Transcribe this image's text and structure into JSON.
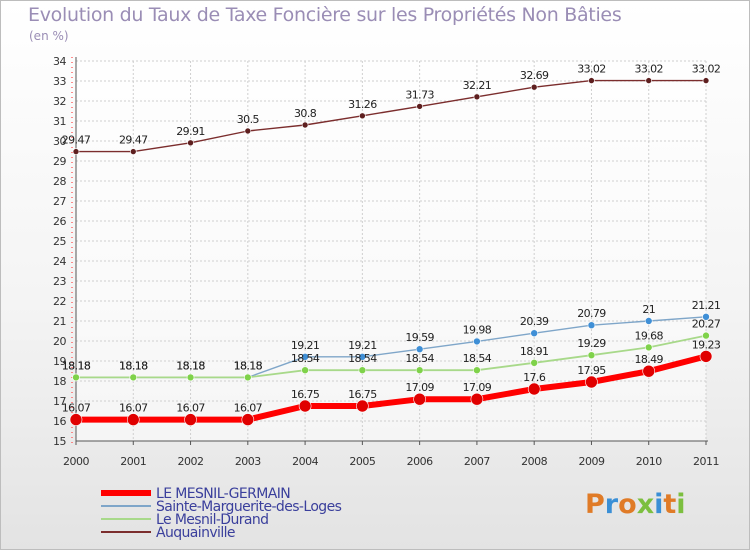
{
  "title": "Evolution du Taux de Taxe Foncière sur les Propriétés Non Bâties",
  "subtitle": "(en %)",
  "logo": {
    "text": "Proxiti",
    "colors": [
      "#e07b27",
      "#3a8fd6",
      "#e07b27",
      "#7cbf3f",
      "#3a8fd6",
      "#e07b27",
      "#7cbf3f"
    ]
  },
  "chart_data": {
    "type": "line",
    "title": "Evolution du Taux de Taxe Foncière sur les Propriétés Non Bâties",
    "ylabel": "(en %)",
    "xlabel": "",
    "x": [
      "2000",
      "2001",
      "2002",
      "2003",
      "2004",
      "2005",
      "2006",
      "2007",
      "2008",
      "2009",
      "2010",
      "2011"
    ],
    "ylim": [
      15,
      34
    ],
    "yticks": [
      15,
      16,
      17,
      18,
      19,
      20,
      21,
      22,
      23,
      24,
      25,
      26,
      27,
      28,
      29,
      30,
      31,
      32,
      33,
      34
    ],
    "grid": true,
    "legend_position": "bottom-left",
    "series": [
      {
        "name": "Auquainville",
        "color": "#7b2d2d",
        "point_color": "#5e1f1f",
        "width": 1.4,
        "radius": 3,
        "values": [
          29.47,
          29.47,
          29.91,
          30.5,
          30.8,
          31.26,
          31.73,
          32.21,
          32.69,
          33.02,
          33.02,
          33.02
        ],
        "labels": [
          "29.47",
          "29.47",
          "29.91",
          "30.5",
          "30.8",
          "31.26",
          "31.73",
          "32.21",
          "32.69",
          "33.02",
          "33.02",
          "33.02"
        ]
      },
      {
        "name": "Sainte-Marguerite-des-Loges",
        "color": "#7fa6c9",
        "point_color": "#3f8fd6",
        "width": 1.4,
        "radius": 3.5,
        "values": [
          18.18,
          18.18,
          18.18,
          18.18,
          19.21,
          19.21,
          19.59,
          19.98,
          20.39,
          20.79,
          21,
          21.21
        ],
        "labels": [
          "18.18",
          "18.18",
          "18.18",
          "18.18",
          "19.21",
          "19.21",
          "19.59",
          "19.98",
          "20.39",
          "20.79",
          "21",
          "21.21"
        ]
      },
      {
        "name": "Le Mesnil-Durand",
        "color": "#a8d98a",
        "point_color": "#7fd24a",
        "width": 1.8,
        "radius": 3.5,
        "values": [
          18.18,
          18.18,
          18.18,
          18.18,
          18.54,
          18.54,
          18.54,
          18.54,
          18.91,
          19.29,
          19.68,
          20.27
        ],
        "labels": [
          "18.18",
          "18.18",
          "18.18",
          "18.18",
          "18.54",
          "18.54",
          "18.54",
          "18.54",
          "18.91",
          "19.29",
          "19.68",
          "20.27"
        ]
      },
      {
        "name": "LE MESNIL-GERMAIN",
        "color": "#ff0000",
        "point_color": "#e00000",
        "width": 6,
        "radius": 6,
        "values": [
          16.07,
          16.07,
          16.07,
          16.07,
          16.75,
          16.75,
          17.09,
          17.09,
          17.6,
          17.95,
          18.49,
          19.23
        ],
        "labels": [
          "16.07",
          "16.07",
          "16.07",
          "16.07",
          "16.75",
          "16.75",
          "17.09",
          "17.09",
          "17.6",
          "17.95",
          "18.49",
          "19.23"
        ]
      }
    ],
    "legend": [
      {
        "name": "LE MESNIL-GERMAIN",
        "color": "#ff0000"
      },
      {
        "name": "Sainte-Marguerite-des-Loges",
        "color": "#7fa6c9"
      },
      {
        "name": "Le Mesnil-Durand",
        "color": "#a8d98a"
      },
      {
        "name": "Auquainville",
        "color": "#7b2d2d"
      }
    ]
  }
}
